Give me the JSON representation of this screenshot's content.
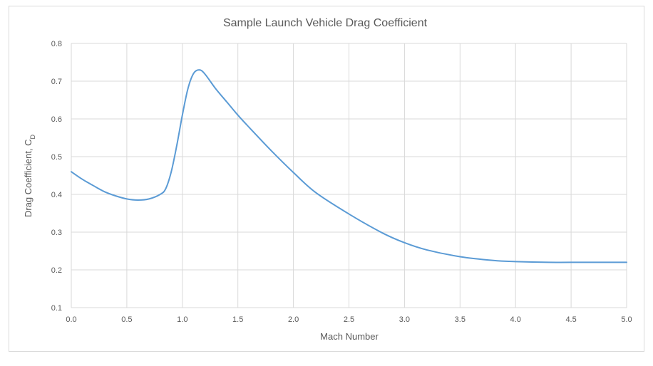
{
  "chart_data": {
    "type": "line",
    "title": "Sample Launch Vehicle Drag Coefficient",
    "xlabel": "Mach Number",
    "ylabel": "Drag Coefficient, C",
    "ylabel_subscript": "D",
    "xlim": [
      0,
      5
    ],
    "ylim": [
      0.1,
      0.8
    ],
    "x_ticks": [
      "0.0",
      "0.5",
      "1.0",
      "1.5",
      "2.0",
      "2.5",
      "3.0",
      "3.5",
      "4.0",
      "4.5",
      "5.0"
    ],
    "y_ticks": [
      "0.1",
      "0.2",
      "0.3",
      "0.4",
      "0.5",
      "0.6",
      "0.7",
      "0.8"
    ],
    "grid": true,
    "line_color": "#5b9bd5",
    "grid_color": "#d9d9d9",
    "series": [
      {
        "x": [
          0.0,
          0.1,
          0.2,
          0.3,
          0.4,
          0.5,
          0.6,
          0.7,
          0.8,
          0.85,
          0.9,
          0.95,
          1.0,
          1.05,
          1.1,
          1.15,
          1.2,
          1.3,
          1.4,
          1.5,
          1.6,
          1.8,
          2.0,
          2.2,
          2.5,
          2.8,
          3.0,
          3.2,
          3.5,
          3.8,
          4.0,
          4.3,
          4.5,
          5.0
        ],
        "y": [
          0.46,
          0.44,
          0.423,
          0.407,
          0.396,
          0.388,
          0.385,
          0.388,
          0.4,
          0.415,
          0.46,
          0.53,
          0.61,
          0.68,
          0.72,
          0.73,
          0.72,
          0.68,
          0.645,
          0.61,
          0.578,
          0.516,
          0.458,
          0.405,
          0.348,
          0.298,
          0.272,
          0.253,
          0.235,
          0.225,
          0.222,
          0.22,
          0.22,
          0.22
        ]
      }
    ]
  }
}
